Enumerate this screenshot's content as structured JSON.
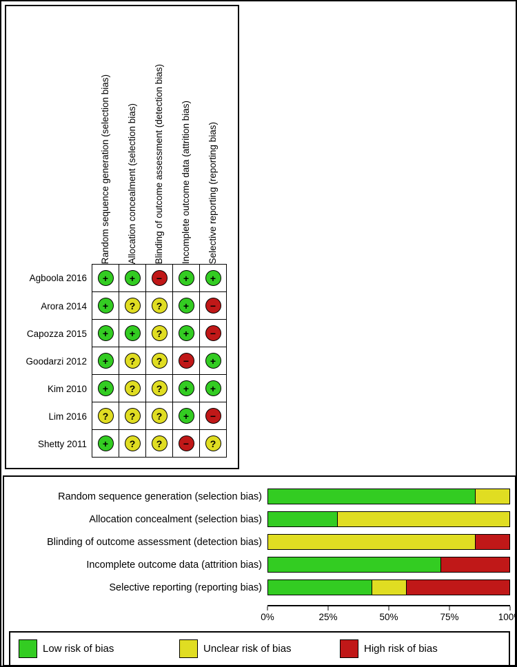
{
  "figure": {
    "symbols": {
      "low": "+",
      "unclear": "?",
      "high": "−"
    },
    "colors": {
      "low": "#33cc22",
      "unclear": "#e0dd22",
      "high": "#c01818"
    }
  },
  "summary_table": {
    "domains": [
      "Random sequence generation (selection bias)",
      "Allocation concealment (selection bias)",
      "Blinding of outcome assessment (detection bias)",
      "Incomplete outcome data (attrition bias)",
      "Selective reporting (reporting bias)"
    ],
    "studies": [
      {
        "name": "Agboola 2016",
        "ratings": [
          "low",
          "low",
          "high",
          "low",
          "low"
        ]
      },
      {
        "name": "Arora 2014",
        "ratings": [
          "low",
          "unclear",
          "unclear",
          "low",
          "high"
        ]
      },
      {
        "name": "Capozza 2015",
        "ratings": [
          "low",
          "low",
          "unclear",
          "low",
          "high"
        ]
      },
      {
        "name": "Goodarzi 2012",
        "ratings": [
          "low",
          "unclear",
          "unclear",
          "high",
          "low"
        ]
      },
      {
        "name": "Kim 2010",
        "ratings": [
          "low",
          "unclear",
          "unclear",
          "low",
          "low"
        ]
      },
      {
        "name": "Lim 2016",
        "ratings": [
          "unclear",
          "unclear",
          "unclear",
          "low",
          "high"
        ]
      },
      {
        "name": "Shetty 2011",
        "ratings": [
          "low",
          "unclear",
          "unclear",
          "high",
          "unclear"
        ]
      }
    ]
  },
  "chart_data": {
    "type": "bar",
    "stacked": true,
    "orientation": "horizontal",
    "categories": [
      "Random sequence generation (selection bias)",
      "Allocation concealment (selection bias)",
      "Blinding of outcome assessment (detection bias)",
      "Incomplete outcome data (attrition bias)",
      "Selective reporting (reporting bias)"
    ],
    "series": [
      {
        "name": "Low risk of bias",
        "key": "low",
        "color": "#33cc22",
        "values": [
          85.7,
          28.6,
          0,
          71.4,
          42.9
        ]
      },
      {
        "name": "Unclear risk of bias",
        "key": "unclear",
        "color": "#e0dd22",
        "values": [
          14.3,
          71.4,
          85.7,
          0,
          14.3
        ]
      },
      {
        "name": "High risk of bias",
        "key": "high",
        "color": "#c01818",
        "values": [
          0,
          0,
          14.3,
          28.6,
          42.9
        ]
      }
    ],
    "x_ticks": [
      "0%",
      "25%",
      "50%",
      "75%",
      "100%"
    ],
    "xlim": [
      0,
      100
    ],
    "legend_position": "bottom",
    "grid": false
  }
}
